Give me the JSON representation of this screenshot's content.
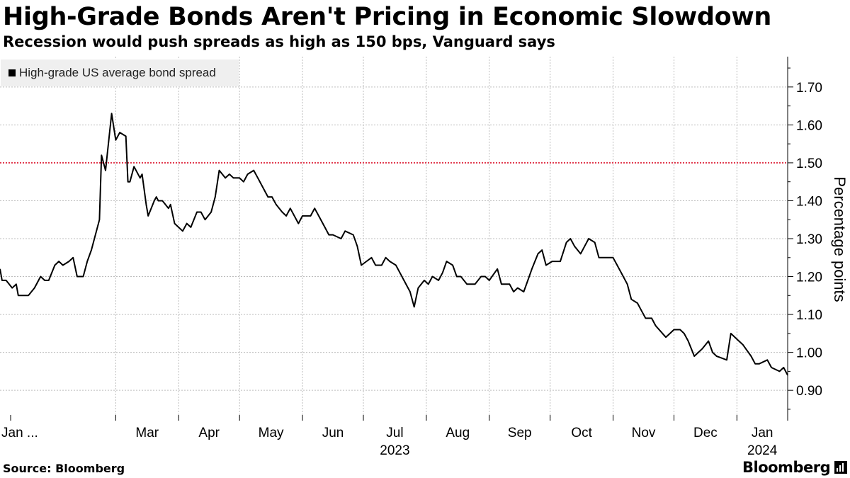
{
  "header": {
    "title": "High-Grade Bonds Aren't Pricing in Economic Slowdown",
    "subtitle": "Recession would push spreads as high as 150 bps, Vanguard says"
  },
  "footer": {
    "source": "Source: Bloomberg",
    "brand": "Bloomberg"
  },
  "colors": {
    "line": "#000000",
    "reference_line": "#e0354a",
    "grid": "#bdbdbd",
    "legend_bg": "#efefef"
  },
  "chart_data": {
    "type": "line",
    "ylabel": "Percentage points",
    "ylim": [
      0.82,
      1.78
    ],
    "yticks": [
      0.9,
      1.0,
      1.1,
      1.2,
      1.3,
      1.4,
      1.5,
      1.6,
      1.7
    ],
    "ytick_labels": [
      "0.90",
      "1.00",
      "1.10",
      "1.20",
      "1.30",
      "1.40",
      "1.50",
      "1.60",
      "1.70"
    ],
    "xlim": [
      "2023-01-03",
      "2024-01-26"
    ],
    "xticks": [
      {
        "label": "Jan ...",
        "date": "2023-01-01"
      },
      {
        "label": "Mar",
        "date": "2023-03-01"
      },
      {
        "label": "Apr",
        "date": "2023-04-01"
      },
      {
        "label": "May",
        "date": "2023-05-01"
      },
      {
        "label": "Jun",
        "date": "2023-06-01"
      },
      {
        "label": "Jul",
        "date": "2023-07-01"
      },
      {
        "label": "Aug",
        "date": "2023-08-01"
      },
      {
        "label": "Sep",
        "date": "2023-09-01"
      },
      {
        "label": "Oct",
        "date": "2023-10-01"
      },
      {
        "label": "Nov",
        "date": "2023-11-01"
      },
      {
        "label": "Dec",
        "date": "2023-12-01"
      },
      {
        "label": "Jan",
        "date": "2024-01-01"
      }
    ],
    "year_labels": [
      {
        "label": "2023",
        "date": "2023-07-01"
      },
      {
        "label": "2024",
        "date": "2024-01-01"
      }
    ],
    "grid": true,
    "legend_position": "top-left",
    "reference_line": {
      "y": 1.5,
      "style": "dotted"
    },
    "series": [
      {
        "name": "High-grade US average bond spread",
        "x": [
          "2023-01-03",
          "2023-01-04",
          "2023-01-06",
          "2023-01-09",
          "2023-01-11",
          "2023-01-12",
          "2023-01-13",
          "2023-01-17",
          "2023-01-20",
          "2023-01-23",
          "2023-01-25",
          "2023-01-27",
          "2023-01-30",
          "2023-02-01",
          "2023-02-03",
          "2023-02-06",
          "2023-02-08",
          "2023-02-10",
          "2023-02-13",
          "2023-02-15",
          "2023-02-17",
          "2023-02-21",
          "2023-02-22",
          "2023-02-24",
          "2023-02-27",
          "2023-03-01",
          "2023-03-03",
          "2023-03-06",
          "2023-03-07",
          "2023-03-08",
          "2023-03-09",
          "2023-03-10",
          "2023-03-13",
          "2023-03-14",
          "2023-03-15",
          "2023-03-16",
          "2023-03-17",
          "2023-03-20",
          "2023-03-21",
          "2023-03-22",
          "2023-03-24",
          "2023-03-27",
          "2023-03-28",
          "2023-03-30",
          "2023-04-03",
          "2023-04-05",
          "2023-04-07",
          "2023-04-10",
          "2023-04-12",
          "2023-04-14",
          "2023-04-17",
          "2023-04-19",
          "2023-04-21",
          "2023-04-24",
          "2023-04-26",
          "2023-04-28",
          "2023-05-01",
          "2023-05-03",
          "2023-05-05",
          "2023-05-08",
          "2023-05-10",
          "2023-05-12",
          "2023-05-15",
          "2023-05-17",
          "2023-05-19",
          "2023-05-22",
          "2023-05-24",
          "2023-05-26",
          "2023-05-30",
          "2023-06-01",
          "2023-06-05",
          "2023-06-07",
          "2023-06-09",
          "2023-06-12",
          "2023-06-14",
          "2023-06-16",
          "2023-06-20",
          "2023-06-22",
          "2023-06-26",
          "2023-06-28",
          "2023-06-30",
          "2023-07-05",
          "2023-07-07",
          "2023-07-10",
          "2023-07-12",
          "2023-07-14",
          "2023-07-17",
          "2023-07-19",
          "2023-07-21",
          "2023-07-24",
          "2023-07-26",
          "2023-07-28",
          "2023-07-31",
          "2023-08-02",
          "2023-08-04",
          "2023-08-07",
          "2023-08-09",
          "2023-08-11",
          "2023-08-14",
          "2023-08-16",
          "2023-08-18",
          "2023-08-21",
          "2023-08-23",
          "2023-08-25",
          "2023-08-28",
          "2023-08-30",
          "2023-09-01",
          "2023-09-05",
          "2023-09-07",
          "2023-09-11",
          "2023-09-13",
          "2023-09-15",
          "2023-09-18",
          "2023-09-20",
          "2023-09-22",
          "2023-09-25",
          "2023-09-27",
          "2023-09-29",
          "2023-10-02",
          "2023-10-04",
          "2023-10-06",
          "2023-10-09",
          "2023-10-11",
          "2023-10-13",
          "2023-10-16",
          "2023-10-18",
          "2023-10-20",
          "2023-10-23",
          "2023-10-25",
          "2023-10-27",
          "2023-10-30",
          "2023-11-01",
          "2023-11-03",
          "2023-11-06",
          "2023-11-08",
          "2023-11-10",
          "2023-11-13",
          "2023-11-15",
          "2023-11-17",
          "2023-11-20",
          "2023-11-22",
          "2023-11-27",
          "2023-11-29",
          "2023-12-01",
          "2023-12-04",
          "2023-12-06",
          "2023-12-08",
          "2023-12-11",
          "2023-12-13",
          "2023-12-15",
          "2023-12-18",
          "2023-12-20",
          "2023-12-22",
          "2023-12-27",
          "2023-12-29",
          "2024-01-02",
          "2024-01-04",
          "2024-01-08",
          "2024-01-10",
          "2024-01-12",
          "2024-01-16",
          "2024-01-18",
          "2024-01-22",
          "2024-01-24",
          "2024-01-26"
        ],
        "values": [
          1.22,
          1.19,
          1.19,
          1.17,
          1.18,
          1.15,
          1.15,
          1.15,
          1.17,
          1.2,
          1.19,
          1.19,
          1.23,
          1.24,
          1.23,
          1.24,
          1.25,
          1.2,
          1.2,
          1.24,
          1.27,
          1.35,
          1.52,
          1.48,
          1.63,
          1.56,
          1.58,
          1.57,
          1.45,
          1.45,
          1.47,
          1.49,
          1.46,
          1.47,
          1.43,
          1.39,
          1.36,
          1.4,
          1.41,
          1.4,
          1.4,
          1.38,
          1.39,
          1.34,
          1.32,
          1.34,
          1.33,
          1.37,
          1.37,
          1.35,
          1.37,
          1.41,
          1.48,
          1.46,
          1.47,
          1.46,
          1.46,
          1.45,
          1.47,
          1.48,
          1.46,
          1.44,
          1.41,
          1.41,
          1.39,
          1.37,
          1.36,
          1.38,
          1.34,
          1.36,
          1.36,
          1.38,
          1.36,
          1.33,
          1.31,
          1.31,
          1.3,
          1.32,
          1.31,
          1.28,
          1.23,
          1.25,
          1.23,
          1.23,
          1.25,
          1.24,
          1.23,
          1.21,
          1.19,
          1.16,
          1.12,
          1.17,
          1.19,
          1.18,
          1.2,
          1.19,
          1.21,
          1.24,
          1.23,
          1.2,
          1.2,
          1.18,
          1.18,
          1.18,
          1.2,
          1.2,
          1.19,
          1.22,
          1.18,
          1.18,
          1.16,
          1.17,
          1.16,
          1.19,
          1.22,
          1.26,
          1.27,
          1.23,
          1.24,
          1.24,
          1.24,
          1.29,
          1.3,
          1.28,
          1.26,
          1.28,
          1.3,
          1.29,
          1.25,
          1.25,
          1.25,
          1.25,
          1.23,
          1.2,
          1.18,
          1.14,
          1.13,
          1.11,
          1.09,
          1.09,
          1.07,
          1.04,
          1.05,
          1.06,
          1.06,
          1.05,
          1.03,
          0.99,
          1.0,
          1.01,
          1.03,
          1.0,
          0.99,
          0.98,
          1.05,
          1.03,
          1.02,
          0.99,
          0.97,
          0.97,
          0.98,
          0.96,
          0.95,
          0.96,
          0.94
        ]
      }
    ]
  }
}
